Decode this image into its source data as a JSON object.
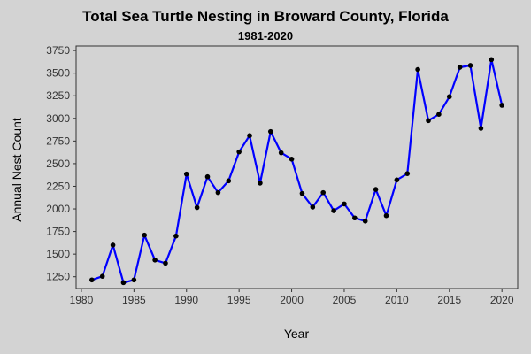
{
  "chart_data": {
    "type": "line",
    "title": "Total Sea Turtle Nesting in Broward County, Florida",
    "subtitle": "1981-2020",
    "xlabel": "Year",
    "ylabel": "Annual Nest Count",
    "xlim": [
      1979.5,
      2021.5
    ],
    "ylim": [
      1120,
      3800
    ],
    "xticks": [
      1980,
      1985,
      1990,
      1995,
      2000,
      2005,
      2010,
      2015,
      2020
    ],
    "yticks": [
      1250,
      1500,
      1750,
      2000,
      2250,
      2500,
      2750,
      3000,
      3250,
      3500,
      3750
    ],
    "grid": false,
    "legend": "none",
    "line_color": "#0000ff",
    "marker_color": "#000000",
    "background_color": "#d3d3d3",
    "series": [
      {
        "x": [
          1981,
          1982,
          1983,
          1984,
          1985,
          1986,
          1987,
          1988,
          1989,
          1990,
          1991,
          1992,
          1993,
          1994,
          1995,
          1996,
          1997,
          1998,
          1999,
          2000,
          2001,
          2002,
          2003,
          2004,
          2005,
          2006,
          2007,
          2008,
          2009,
          2010,
          2011,
          2012,
          2013,
          2014,
          2015,
          2016,
          2017,
          2018,
          2019,
          2020
        ],
        "values": [
          1215,
          1255,
          1600,
          1185,
          1215,
          1710,
          1435,
          1400,
          1700,
          2385,
          2015,
          2355,
          2180,
          2310,
          2630,
          2810,
          2285,
          2855,
          2620,
          2550,
          2170,
          2020,
          2180,
          1980,
          2055,
          1900,
          1865,
          2215,
          1925,
          2320,
          2390,
          3540,
          2975,
          3045,
          3240,
          3565,
          3585,
          2890,
          3650,
          3145
        ]
      }
    ]
  }
}
